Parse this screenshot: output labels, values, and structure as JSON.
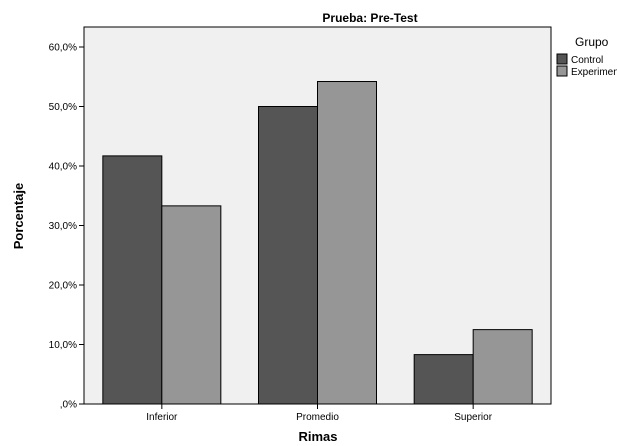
{
  "chart_data": {
    "type": "bar",
    "title": "Prueba: Pre-Test",
    "xlabel": "Rimas",
    "ylabel": "Porcentaje",
    "categories": [
      "Inferior",
      "Promedio",
      "Superior"
    ],
    "series": [
      {
        "name": "Control",
        "values": [
          41.7,
          50.0,
          8.3
        ],
        "color": "#555555"
      },
      {
        "name": "Experimental",
        "values": [
          33.3,
          54.2,
          12.5
        ],
        "color": "#969696"
      }
    ],
    "ylim": [
      0,
      60
    ],
    "yticks": [
      0,
      10,
      20,
      30,
      40,
      50,
      60
    ],
    "ytick_labels": [
      ",0%",
      "10,0%",
      "20,0%",
      "30,0%",
      "40,0%",
      "50,0%",
      "60,0%"
    ],
    "legend": {
      "title": "Grupo",
      "placement": "right"
    },
    "plot_background": "#f0f0f0",
    "grid": false
  }
}
